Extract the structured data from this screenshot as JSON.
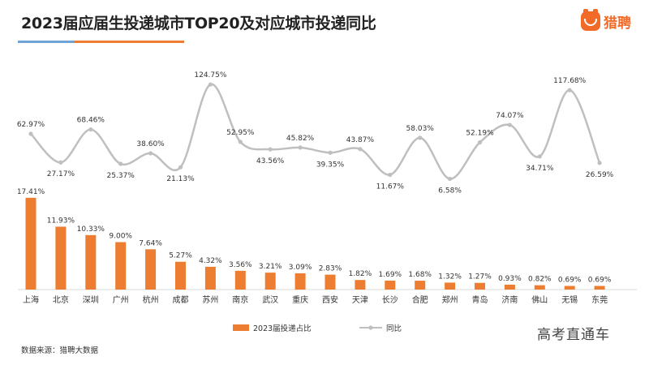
{
  "header": {
    "title": "2023届应届生投递城市TOP20及对应城市投递同比",
    "logo_text": "猎聘",
    "brand_color": "#f26a27",
    "accent_blue": "#6fa3d6"
  },
  "chart_data": {
    "type": "bar+line",
    "categories": [
      "上海",
      "北京",
      "深圳",
      "广州",
      "杭州",
      "成都",
      "苏州",
      "南京",
      "武汉",
      "重庆",
      "西安",
      "天津",
      "长沙",
      "合肥",
      "郑州",
      "青岛",
      "济南",
      "佛山",
      "无锡",
      "东莞"
    ],
    "series": [
      {
        "name": "2023届投递占比",
        "type": "bar",
        "color": "#ed7d31",
        "unit": "%",
        "values": [
          17.41,
          11.93,
          10.33,
          9.0,
          7.64,
          5.27,
          4.32,
          3.56,
          3.21,
          3.09,
          2.83,
          1.82,
          1.69,
          1.68,
          1.32,
          1.27,
          0.93,
          0.82,
          0.69,
          0.69
        ],
        "labels": [
          "17.41%",
          "11.93%",
          "10.33%",
          "9.00%",
          "7.64%",
          "5.27%",
          "4.32%",
          "3.56%",
          "3.21%",
          "3.09%",
          "2.83%",
          "1.82%",
          "1.69%",
          "1.68%",
          "1.32%",
          "1.27%",
          "0.93%",
          "0.82%",
          "0.69%",
          "0.69%"
        ]
      },
      {
        "name": "同比",
        "type": "line",
        "color": "#bfbfbf",
        "unit": "%",
        "values": [
          62.97,
          27.17,
          68.46,
          25.37,
          38.6,
          21.13,
          124.75,
          52.95,
          43.56,
          45.82,
          39.35,
          43.87,
          11.67,
          58.03,
          6.58,
          52.19,
          74.07,
          34.71,
          117.68,
          26.59
        ],
        "labels": [
          "62.97%",
          "27.17%",
          "68.46%",
          "25.37%",
          "38.60%",
          "21.13%",
          "124.75%",
          "52.95%",
          "43.56%",
          "45.82%",
          "39.35%",
          "43.87%",
          "11.67%",
          "58.03%",
          "6.58%",
          "52.19%",
          "74.07%",
          "34.71%",
          "117.68%",
          "26.59%"
        ]
      }
    ],
    "legend": [
      "2023届投递占比",
      "同比"
    ],
    "legend_position": "bottom-center",
    "bar_ylim": [
      0,
      18
    ],
    "line_ylim": [
      0,
      130
    ],
    "grid": false
  },
  "footer": {
    "source": "数据来源：猎聘大数据",
    "watermark": "高考直通车"
  }
}
